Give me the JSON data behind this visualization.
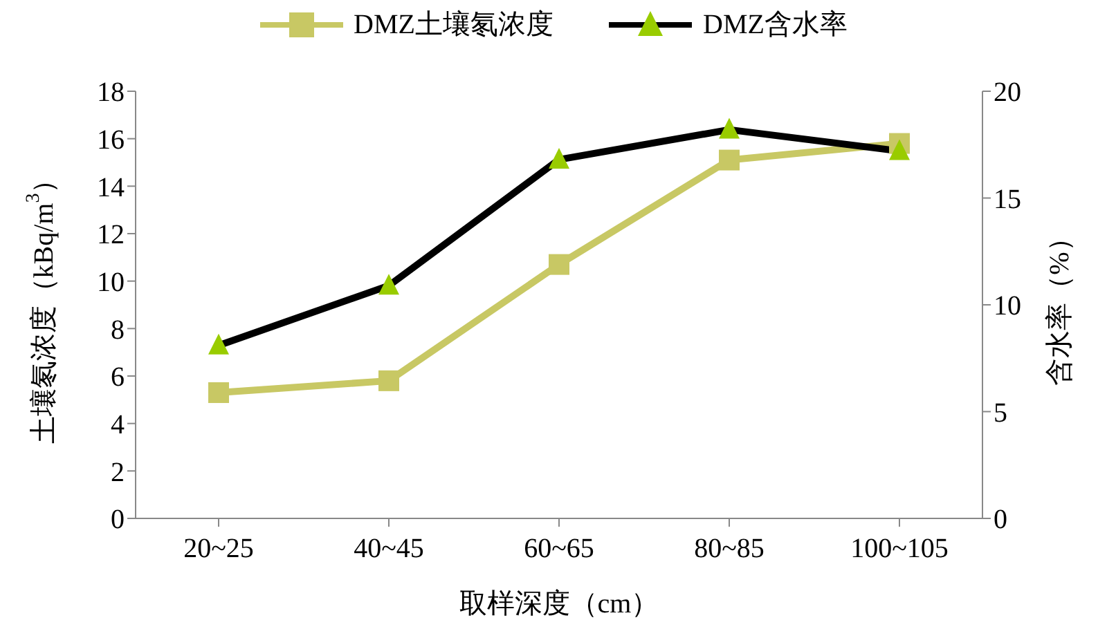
{
  "chart_data": {
    "type": "line",
    "categories": [
      "20~25",
      "40~45",
      "60~65",
      "80~85",
      "100~105"
    ],
    "xlabel": "取样深度（cm）",
    "ylabel": "土壤氡浓度（kBq/m$^{3}$）",
    "y2label": "含水率（%）",
    "ylim": [
      0,
      18
    ],
    "yticks": [
      0,
      2,
      4,
      6,
      8,
      10,
      12,
      14,
      16,
      18
    ],
    "y2lim": [
      0,
      20
    ],
    "y2ticks": [
      0,
      5,
      10,
      15,
      20
    ],
    "legend": "top",
    "series": [
      {
        "name": "DMZ土壤氡浓度",
        "color": "#c8c864",
        "marker": "square",
        "values": [
          5.3,
          5.8,
          10.7,
          15.1,
          15.8
        ]
      },
      {
        "name": "DMZ含水率",
        "color": "#000000",
        "marker": "triangle",
        "axis": "y2",
        "values": [
          8.1,
          10.9,
          16.8,
          18.2,
          17.2
        ]
      }
    ]
  }
}
